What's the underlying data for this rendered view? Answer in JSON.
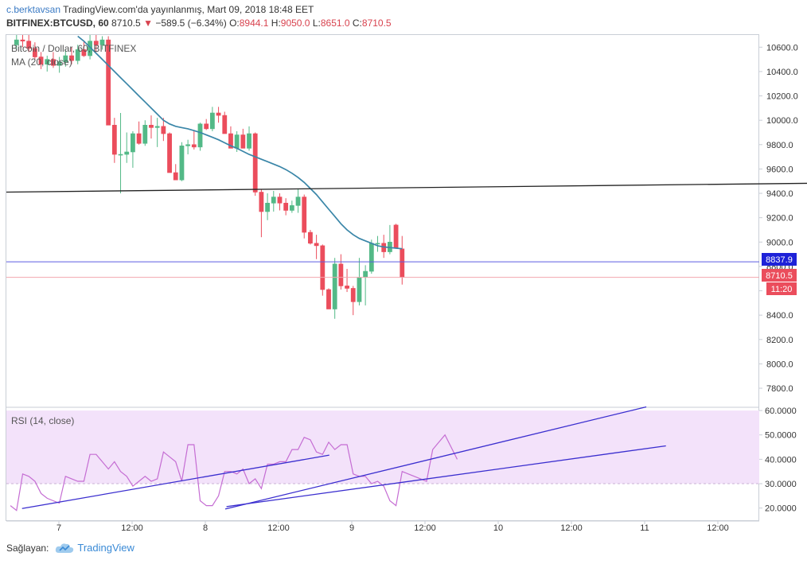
{
  "header": {
    "publisher": "c.berktavsan",
    "published_text": "TradingView.com'da yayınlanmış, Mart 09, 2018 18:48 EET",
    "symbol_line": "BITFINEX:BTCUSD, 60",
    "last": "8710.5",
    "change": "−589.5 (−6.34%)",
    "open_label": "O:",
    "open": "8944.1",
    "high_label": "H:",
    "high": "9050.0",
    "low_label": "L:",
    "low": "8651.0",
    "close_label": "C:",
    "close": "8710.5"
  },
  "legend": {
    "main_title": "Bitcoin / Dollar, 60, BITFINEX",
    "ma_label": "MA (20, close)",
    "rsi_label": "RSI (14, close)"
  },
  "footer": {
    "provided_by": "Sağlayan:",
    "brand": "TradingView"
  },
  "colors": {
    "up": "#53b987",
    "down": "#eb4d5c",
    "ma": "#3a86a8",
    "rsi": "#c56dd3",
    "trend": "#3a2ecf",
    "rsi_band": "#f3e2fa"
  },
  "chart_data": [
    {
      "type": "candlestick",
      "title": "Bitcoin / Dollar, 60, BITFINEX",
      "x_tick_labels": [
        "7",
        "12:00",
        "8",
        "12:00",
        "9",
        "12:00",
        "10",
        "12:00",
        "11",
        "12:00"
      ],
      "y_tick_labels": [
        "7800.0",
        "8000.0",
        "8200.0",
        "8400.0",
        "8600.0",
        "8800.0",
        "9000.0",
        "9200.0",
        "9400.0",
        "9600.0",
        "9800.0",
        "10000.0",
        "10200.0",
        "10400.0",
        "10600.0"
      ],
      "ylim": [
        7650,
        10700
      ],
      "price_labels": {
        "last_price": "8710.5",
        "countdown": "11:20",
        "blue_line": "8837.9"
      },
      "candles": [
        [
          10620,
          10700,
          10580,
          10660
        ],
        [
          10660,
          10700,
          10600,
          10650
        ],
        [
          10650,
          10710,
          10560,
          10590
        ],
        [
          10590,
          10640,
          10500,
          10520
        ],
        [
          10520,
          10560,
          10420,
          10460
        ],
        [
          10460,
          10530,
          10400,
          10500
        ],
        [
          10500,
          10560,
          10430,
          10450
        ],
        [
          10450,
          10520,
          10390,
          10480
        ],
        [
          10480,
          10580,
          10440,
          10530
        ],
        [
          10530,
          10600,
          10460,
          10490
        ],
        [
          10490,
          10620,
          10460,
          10580
        ],
        [
          10580,
          10650,
          10520,
          10530
        ],
        [
          10530,
          10700,
          10500,
          10650
        ],
        [
          10650,
          10700,
          10560,
          10620
        ],
        [
          10620,
          10690,
          10580,
          10660
        ],
        [
          10660,
          10690,
          9960,
          9960
        ],
        [
          9960,
          10020,
          9650,
          9720
        ],
        [
          9720,
          10060,
          9400,
          9720
        ],
        [
          9720,
          9900,
          9650,
          9740
        ],
        [
          9740,
          9910,
          9610,
          9890
        ],
        [
          9890,
          9990,
          9800,
          9810
        ],
        [
          9810,
          10000,
          9790,
          9960
        ],
        [
          9960,
          10040,
          9850,
          9940
        ],
        [
          9940,
          10020,
          9780,
          9950
        ],
        [
          9950,
          10020,
          9830,
          9890
        ],
        [
          9890,
          9900,
          9580,
          9570
        ],
        [
          9570,
          9640,
          9520,
          9510
        ],
        [
          9510,
          9820,
          9500,
          9790
        ],
        [
          9790,
          9840,
          9720,
          9800
        ],
        [
          9800,
          9920,
          9760,
          9780
        ],
        [
          9780,
          9980,
          9750,
          9970
        ],
        [
          9970,
          10010,
          9920,
          9930
        ],
        [
          9930,
          10110,
          9910,
          10060
        ],
        [
          10060,
          10110,
          9980,
          10040
        ],
        [
          10040,
          10070,
          9900,
          9890
        ],
        [
          9890,
          9950,
          9790,
          9770
        ],
        [
          9770,
          9910,
          9740,
          9880
        ],
        [
          9880,
          9930,
          9770,
          9770
        ],
        [
          9770,
          9950,
          9750,
          9890
        ],
        [
          9890,
          9900,
          9380,
          9410
        ],
        [
          9410,
          9430,
          9040,
          9250
        ],
        [
          9250,
          9400,
          9180,
          9320
        ],
        [
          9320,
          9420,
          9250,
          9370
        ],
        [
          9370,
          9400,
          9260,
          9320
        ],
        [
          9320,
          9360,
          9220,
          9260
        ],
        [
          9260,
          9340,
          9240,
          9300
        ],
        [
          9300,
          9440,
          9240,
          9370
        ],
        [
          9370,
          9390,
          9030,
          9080
        ],
        [
          9080,
          9100,
          8980,
          8990
        ],
        [
          8990,
          9060,
          8860,
          8970
        ],
        [
          8970,
          8980,
          8560,
          8610
        ],
        [
          8610,
          8620,
          8450,
          8450
        ],
        [
          8450,
          8870,
          8370,
          8820
        ],
        [
          8820,
          8900,
          8610,
          8640
        ],
        [
          8640,
          8780,
          8590,
          8620
        ],
        [
          8620,
          8640,
          8400,
          8510
        ],
        [
          8510,
          8870,
          8480,
          8710
        ],
        [
          8710,
          8810,
          8480,
          8760
        ],
        [
          8760,
          9020,
          8740,
          8990
        ],
        [
          8990,
          9050,
          8920,
          8990
        ],
        [
          8990,
          9060,
          8870,
          8920
        ],
        [
          8920,
          9140,
          8900,
          9000
        ],
        [
          9140,
          9150,
          8950,
          8950
        ],
        [
          8944.1,
          9050,
          8651,
          8710.5
        ]
      ],
      "ma20": [
        10690,
        10650,
        10600,
        10550,
        10500,
        10450,
        10400,
        10350,
        10300,
        10250,
        10200,
        10150,
        10100,
        10050,
        10000,
        9970,
        9950,
        9940,
        9930,
        9915,
        9900,
        9880,
        9860,
        9840,
        9815,
        9790,
        9770,
        9745,
        9720,
        9700,
        9680,
        9660,
        9640,
        9620,
        9595,
        9565,
        9530,
        9490,
        9440,
        9390,
        9330,
        9270,
        9210,
        9150,
        9100,
        9060,
        9030,
        9010,
        8990,
        8970,
        8960,
        8955,
        8950,
        8945
      ],
      "horizontal_line_value": 8837.9,
      "trendline": {
        "x_start_bar": 0,
        "y_start": 9410,
        "x_end_bar": 142.7,
        "y_end": 9490
      }
    },
    {
      "type": "line",
      "title": "RSI (14, close)",
      "y_tick_labels": [
        "20.0000",
        "30.0000",
        "40.0000",
        "50.0000",
        "60.0000"
      ],
      "ylim": [
        15,
        61
      ],
      "band": [
        30,
        60
      ],
      "values": [
        21,
        19,
        34,
        33,
        31,
        26,
        24,
        23,
        22,
        33,
        32,
        31,
        31,
        42,
        42,
        39,
        36,
        39,
        35,
        33,
        29,
        31,
        33,
        31,
        32,
        43,
        41,
        39,
        31,
        46,
        46,
        23,
        21,
        21,
        25,
        35,
        35,
        34,
        36,
        30,
        32,
        28,
        38,
        38,
        39,
        39,
        44,
        44,
        49,
        48,
        43,
        42,
        47,
        44,
        46,
        46,
        34,
        33,
        33,
        30,
        31,
        29,
        23,
        21,
        35,
        34,
        33,
        32,
        31,
        44,
        47,
        50,
        45,
        40
      ],
      "trendlines": [
        {
          "x_start_bar": 0.9,
          "y_start": 19.8,
          "x_end_bar": 51.1,
          "y_end": 41.7
        },
        {
          "x_start_bar": 34.1,
          "y_start": 19.6,
          "x_end_bar": 102.9,
          "y_end": 61.5
        },
        {
          "x_start_bar": 34.3,
          "y_start": 20.6,
          "x_end_bar": 106.1,
          "y_end": 45.5
        }
      ]
    }
  ]
}
